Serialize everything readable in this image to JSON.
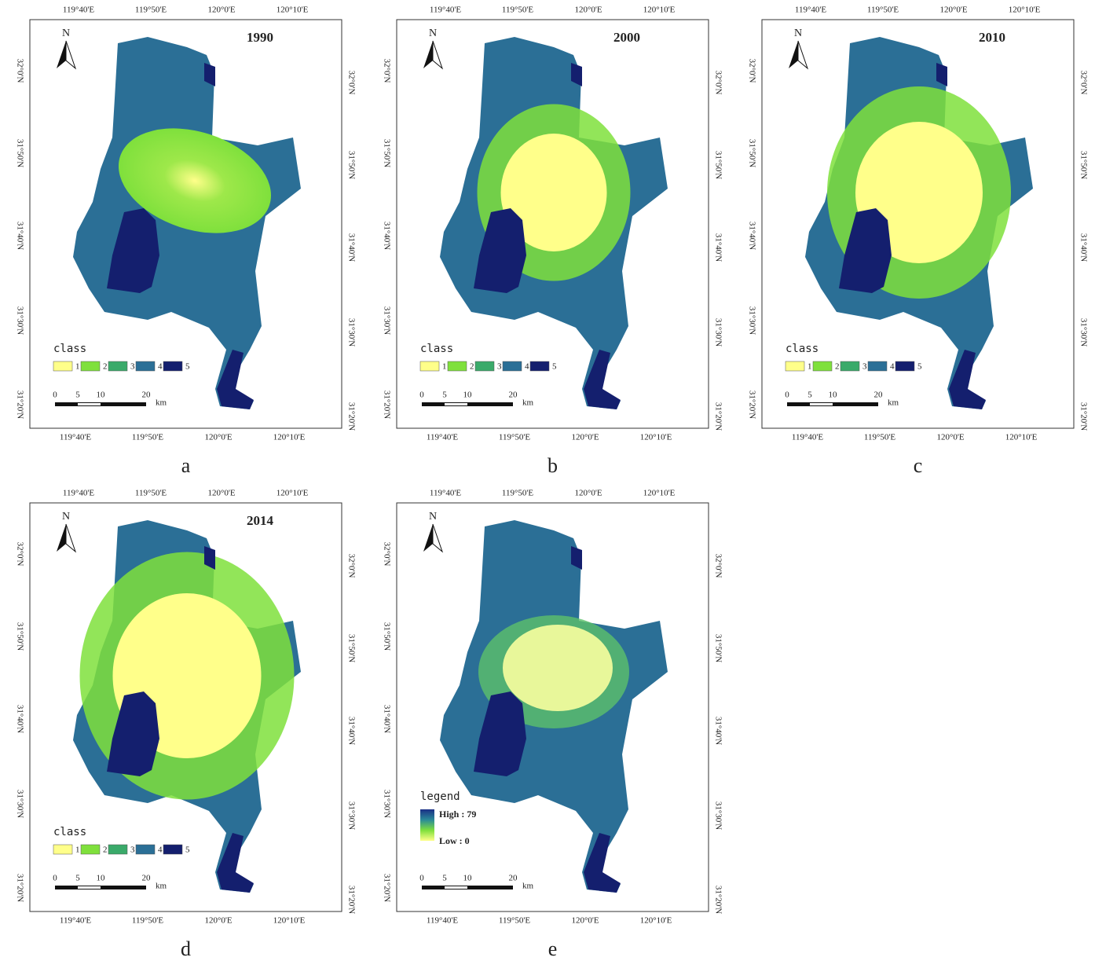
{
  "north": "N",
  "lon_labels": [
    "119°40'E",
    "119°50'E",
    "120°0'E",
    "120°10'E"
  ],
  "lat_labels": [
    "32°0'N",
    "31°50'N",
    "31°40'N",
    "31°30'N",
    "31°20'N"
  ],
  "scale": {
    "ticks": [
      "0",
      "5",
      "10",
      "20"
    ],
    "unit": "km"
  },
  "class_legend": {
    "title": "class",
    "classes": [
      {
        "label": "1",
        "color": "#ffff8a"
      },
      {
        "label": "2",
        "color": "#7fe03c"
      },
      {
        "label": "3",
        "color": "#3aaa6a"
      },
      {
        "label": "4",
        "color": "#2b6f96"
      },
      {
        "label": "5",
        "color": "#141f6e"
      }
    ]
  },
  "panels": [
    {
      "letter": "a",
      "year": "1990"
    },
    {
      "letter": "b",
      "year": "2000"
    },
    {
      "letter": "c",
      "year": "2010"
    },
    {
      "letter": "d",
      "year": "2014"
    },
    {
      "letter": "e",
      "legend": {
        "title": "legend",
        "high": "High : 79",
        "low": "Low : 0",
        "gradient": [
          "#1a2f86",
          "#2a8a98",
          "#7fe03c",
          "#ffff8a"
        ]
      }
    }
  ]
}
